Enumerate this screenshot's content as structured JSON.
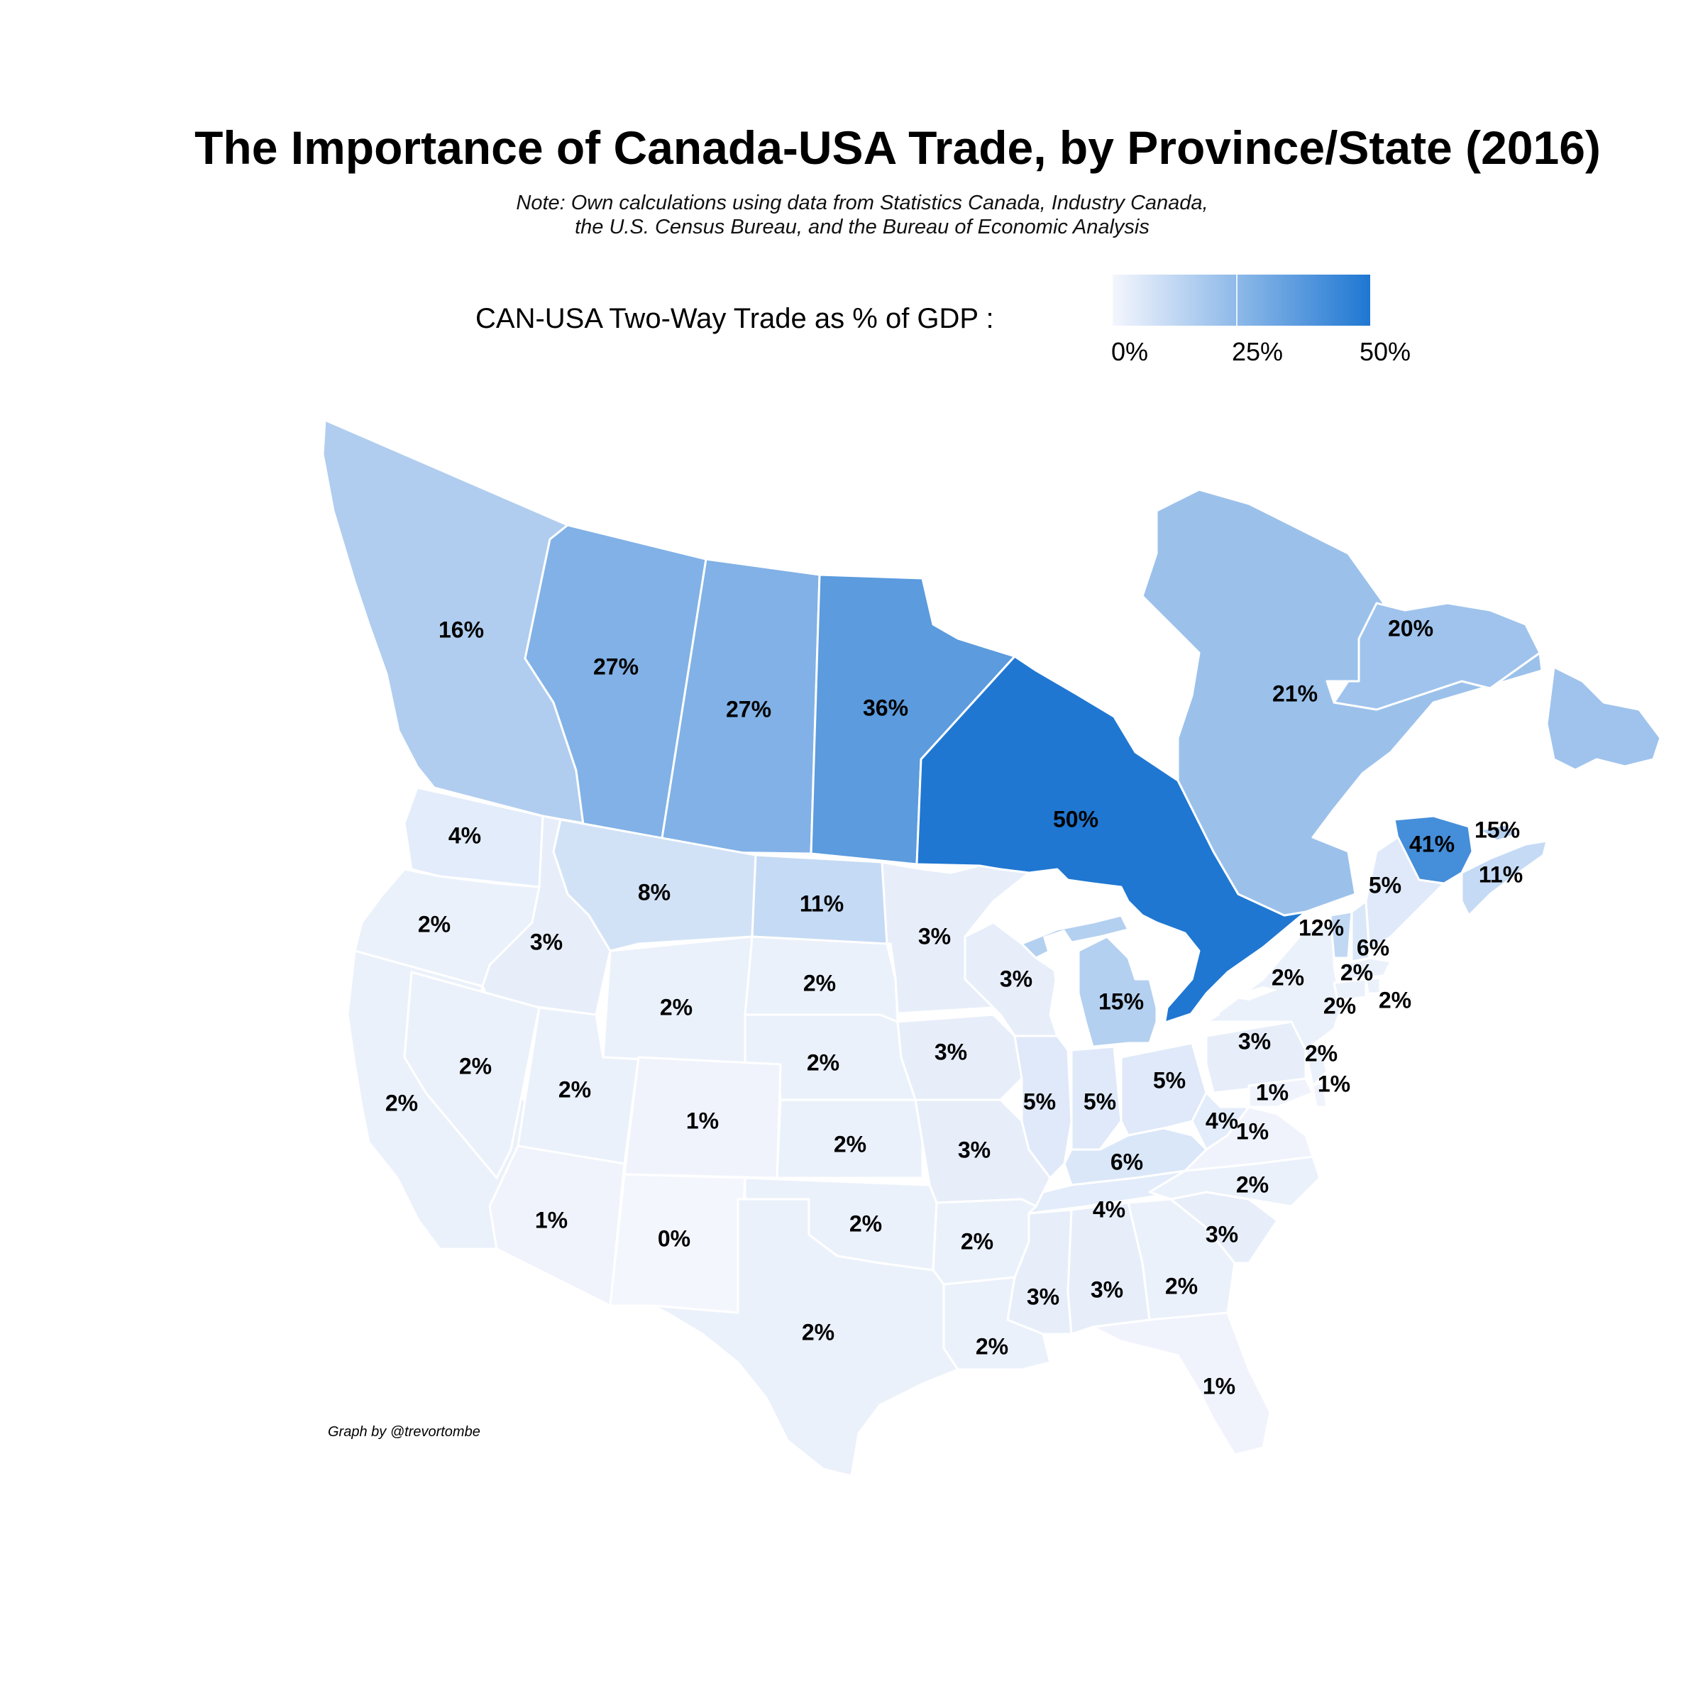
{
  "title": "The Importance of Canada-USA Trade, by Province/State (2016)",
  "subtitle_line1": "Note: Own calculations using data from Statistics Canada, Industry Canada,",
  "subtitle_line2": "the U.S. Census Bureau, and the Bureau of Economic Analysis",
  "legend": {
    "title": "CAN-USA Two-Way Trade as % of GDP :",
    "ticks": [
      "0%",
      "25%",
      "50%"
    ],
    "tick_values": [
      0,
      25,
      50
    ],
    "min": 0,
    "max": 50,
    "color_low": "#f4f6fd",
    "color_high": "#1f77d2"
  },
  "credit": "Graph by @trevortombe",
  "regions": [
    {
      "id": "BC",
      "label": "16%",
      "value": 16
    },
    {
      "id": "AB",
      "label": "27%",
      "value": 27
    },
    {
      "id": "SK",
      "label": "27%",
      "value": 27
    },
    {
      "id": "MB",
      "label": "36%",
      "value": 36
    },
    {
      "id": "ON",
      "label": "50%",
      "value": 50
    },
    {
      "id": "QC",
      "label": "21%",
      "value": 21
    },
    {
      "id": "NL",
      "label": "20%",
      "value": 20
    },
    {
      "id": "NB",
      "label": "41%",
      "value": 41
    },
    {
      "id": "PE",
      "label": "15%",
      "value": 15
    },
    {
      "id": "NS",
      "label": "11%",
      "value": 11
    },
    {
      "id": "WA",
      "label": "4%",
      "value": 4
    },
    {
      "id": "OR",
      "label": "2%",
      "value": 2
    },
    {
      "id": "ID",
      "label": "3%",
      "value": 3
    },
    {
      "id": "MT",
      "label": "8%",
      "value": 8
    },
    {
      "id": "ND",
      "label": "11%",
      "value": 11
    },
    {
      "id": "MN",
      "label": "3%",
      "value": 3
    },
    {
      "id": "WI",
      "label": "3%",
      "value": 3
    },
    {
      "id": "MI",
      "label": "15%",
      "value": 15
    },
    {
      "id": "CA",
      "label": "2%",
      "value": 2
    },
    {
      "id": "NV",
      "label": "2%",
      "value": 2
    },
    {
      "id": "UT",
      "label": "2%",
      "value": 2
    },
    {
      "id": "WY",
      "label": "2%",
      "value": 2
    },
    {
      "id": "SD",
      "label": "2%",
      "value": 2
    },
    {
      "id": "NE",
      "label": "2%",
      "value": 2
    },
    {
      "id": "IA",
      "label": "3%",
      "value": 3
    },
    {
      "id": "CO",
      "label": "1%",
      "value": 1
    },
    {
      "id": "KS",
      "label": "2%",
      "value": 2
    },
    {
      "id": "MO",
      "label": "3%",
      "value": 3
    },
    {
      "id": "IL",
      "label": "5%",
      "value": 5
    },
    {
      "id": "IN",
      "label": "5%",
      "value": 5
    },
    {
      "id": "OH",
      "label": "5%",
      "value": 5
    },
    {
      "id": "KY",
      "label": "6%",
      "value": 6
    },
    {
      "id": "WV",
      "label": "4%",
      "value": 4
    },
    {
      "id": "AZ",
      "label": "1%",
      "value": 1
    },
    {
      "id": "NM",
      "label": "0%",
      "value": 0
    },
    {
      "id": "OK",
      "label": "2%",
      "value": 2
    },
    {
      "id": "AR",
      "label": "2%",
      "value": 2
    },
    {
      "id": "TN",
      "label": "4%",
      "value": 4
    },
    {
      "id": "TX",
      "label": "2%",
      "value": 2
    },
    {
      "id": "LA",
      "label": "2%",
      "value": 2
    },
    {
      "id": "MS",
      "label": "3%",
      "value": 3
    },
    {
      "id": "AL",
      "label": "3%",
      "value": 3
    },
    {
      "id": "GA",
      "label": "2%",
      "value": 2
    },
    {
      "id": "FL",
      "label": "1%",
      "value": 1
    },
    {
      "id": "SC",
      "label": "3%",
      "value": 3
    },
    {
      "id": "NC",
      "label": "2%",
      "value": 2
    },
    {
      "id": "VA",
      "label": "1%",
      "value": 1
    },
    {
      "id": "PA",
      "label": "3%",
      "value": 3
    },
    {
      "id": "NY",
      "label": "2%",
      "value": 2
    },
    {
      "id": "VT",
      "label": "12%",
      "value": 12
    },
    {
      "id": "NH",
      "label": "6%",
      "value": 6
    },
    {
      "id": "ME",
      "label": "5%",
      "value": 5
    },
    {
      "id": "MA",
      "label": "2%",
      "value": 2
    },
    {
      "id": "RI",
      "label": "2%",
      "value": 2
    },
    {
      "id": "CT",
      "label": "2%",
      "value": 2
    },
    {
      "id": "NJ",
      "label": "2%",
      "value": 2
    },
    {
      "id": "MD",
      "label": "1%",
      "value": 1
    },
    {
      "id": "DE",
      "label": "1%",
      "value": 1
    }
  ]
}
